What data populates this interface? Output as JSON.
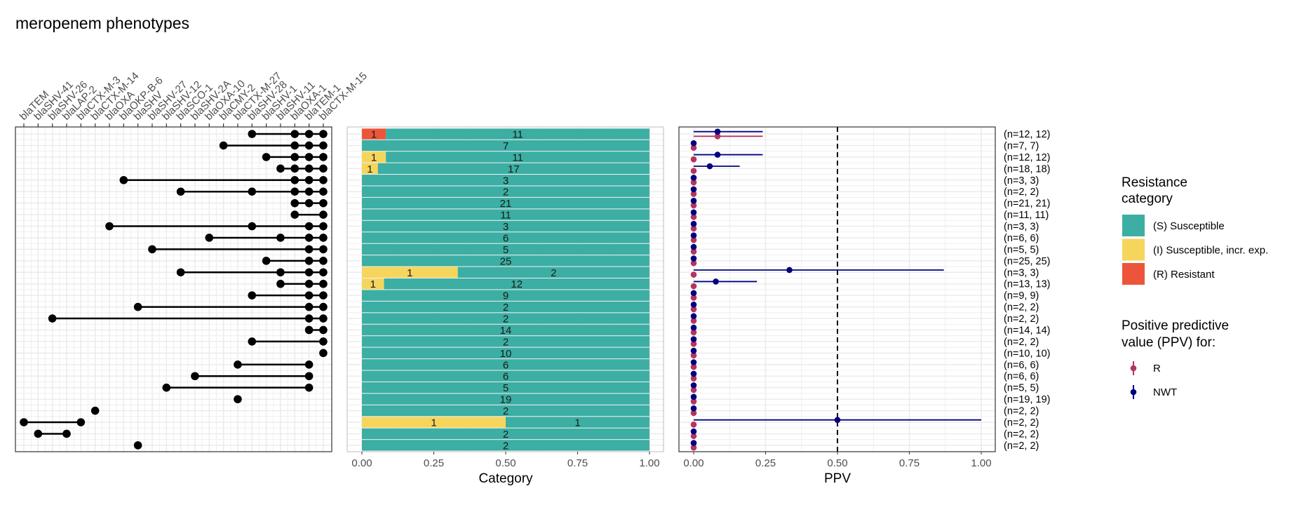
{
  "chart_data": {
    "title": "meropenem phenotypes",
    "genes": [
      "blaTEM",
      "blaSHV-41",
      "blaSHV-26",
      "blaLAP-2",
      "blaCTX-M-3",
      "blaCTX-M-14",
      "blaOXA",
      "blaOKP-B-6",
      "blaSHV",
      "blaSHV-27",
      "blaSHV-12",
      "blaSCO-1",
      "blaSHV-2A",
      "blaOXA-10",
      "blaCMY-2",
      "blaCTX-M-27",
      "blaSHV-28",
      "blaSHV-1",
      "blaSHV-11",
      "blaOXA-1",
      "blaTEM-1",
      "blaCTX-M-15"
    ],
    "combinations": [
      [
        16,
        19,
        20,
        21
      ],
      [
        14,
        19,
        20,
        21
      ],
      [
        17,
        19,
        20,
        21
      ],
      [
        18,
        19,
        20,
        21
      ],
      [
        7,
        19,
        20,
        21
      ],
      [
        11,
        16,
        19,
        20,
        21
      ],
      [
        19,
        20,
        21
      ],
      [
        19,
        21
      ],
      [
        6,
        16,
        20,
        21
      ],
      [
        13,
        18,
        20,
        21
      ],
      [
        9,
        20,
        21
      ],
      [
        17,
        20,
        21
      ],
      [
        11,
        18,
        20,
        21
      ],
      [
        18,
        20,
        21
      ],
      [
        16,
        20,
        21
      ],
      [
        8,
        20,
        21
      ],
      [
        2,
        20,
        21
      ],
      [
        20,
        21
      ],
      [
        16,
        21
      ],
      [
        21
      ],
      [
        15,
        20
      ],
      [
        12,
        20
      ],
      [
        10,
        20
      ],
      [
        15
      ],
      [
        5
      ],
      [
        0,
        4
      ],
      [
        1,
        3
      ],
      [
        8
      ]
    ],
    "category_panel": {
      "type": "bar",
      "xlabel": "Category",
      "xlim": [
        0,
        1
      ],
      "xticks": [
        "0.00",
        "0.25",
        "0.50",
        "0.75",
        "1.00"
      ],
      "rows": [
        {
          "R": 1,
          "I": 0,
          "S": 11
        },
        {
          "R": 0,
          "I": 0,
          "S": 7
        },
        {
          "R": 0,
          "I": 1,
          "S": 11
        },
        {
          "R": 0,
          "I": 1,
          "S": 17
        },
        {
          "R": 0,
          "I": 0,
          "S": 3
        },
        {
          "R": 0,
          "I": 0,
          "S": 2
        },
        {
          "R": 0,
          "I": 0,
          "S": 21
        },
        {
          "R": 0,
          "I": 0,
          "S": 11
        },
        {
          "R": 0,
          "I": 0,
          "S": 3
        },
        {
          "R": 0,
          "I": 0,
          "S": 6
        },
        {
          "R": 0,
          "I": 0,
          "S": 5
        },
        {
          "R": 0,
          "I": 0,
          "S": 25
        },
        {
          "R": 0,
          "I": 1,
          "S": 2
        },
        {
          "R": 0,
          "I": 1,
          "S": 12
        },
        {
          "R": 0,
          "I": 0,
          "S": 9
        },
        {
          "R": 0,
          "I": 0,
          "S": 2
        },
        {
          "R": 0,
          "I": 0,
          "S": 2
        },
        {
          "R": 0,
          "I": 0,
          "S": 14
        },
        {
          "R": 0,
          "I": 0,
          "S": 2
        },
        {
          "R": 0,
          "I": 0,
          "S": 10
        },
        {
          "R": 0,
          "I": 0,
          "S": 6
        },
        {
          "R": 0,
          "I": 0,
          "S": 6
        },
        {
          "R": 0,
          "I": 0,
          "S": 5
        },
        {
          "R": 0,
          "I": 0,
          "S": 19
        },
        {
          "R": 0,
          "I": 0,
          "S": 2
        },
        {
          "R": 0,
          "I": 1,
          "S": 1
        },
        {
          "R": 0,
          "I": 0,
          "S": 2
        },
        {
          "R": 0,
          "I": 0,
          "S": 2
        }
      ]
    },
    "ppv_panel": {
      "type": "scatter",
      "xlabel": "PPV",
      "xlim": [
        0,
        1
      ],
      "xticks": [
        "0.00",
        "0.25",
        "0.50",
        "0.75",
        "1.00"
      ],
      "reference_line": 0.5,
      "rows": [
        {
          "R": [
            0.083,
            0,
            0.24
          ],
          "NWT": [
            0.083,
            0,
            0.24
          ]
        },
        {
          "R": [
            0,
            0,
            0
          ],
          "NWT": [
            0,
            0,
            0
          ]
        },
        {
          "R": [
            0,
            0,
            0
          ],
          "NWT": [
            0.083,
            0,
            0.24
          ]
        },
        {
          "R": [
            0,
            0,
            0
          ],
          "NWT": [
            0.056,
            0,
            0.16
          ]
        },
        {
          "R": [
            0,
            0,
            0
          ],
          "NWT": [
            0,
            0,
            0
          ]
        },
        {
          "R": [
            0,
            0,
            0
          ],
          "NWT": [
            0,
            0,
            0
          ]
        },
        {
          "R": [
            0,
            0,
            0
          ],
          "NWT": [
            0,
            0,
            0
          ]
        },
        {
          "R": [
            0,
            0,
            0
          ],
          "NWT": [
            0,
            0,
            0
          ]
        },
        {
          "R": [
            0,
            0,
            0
          ],
          "NWT": [
            0,
            0,
            0
          ]
        },
        {
          "R": [
            0,
            0,
            0
          ],
          "NWT": [
            0,
            0,
            0
          ]
        },
        {
          "R": [
            0,
            0,
            0
          ],
          "NWT": [
            0,
            0,
            0
          ]
        },
        {
          "R": [
            0,
            0,
            0
          ],
          "NWT": [
            0,
            0,
            0
          ]
        },
        {
          "R": [
            0,
            0,
            0
          ],
          "NWT": [
            0.333,
            0,
            0.87
          ]
        },
        {
          "R": [
            0,
            0,
            0
          ],
          "NWT": [
            0.077,
            0,
            0.22
          ]
        },
        {
          "R": [
            0,
            0,
            0
          ],
          "NWT": [
            0,
            0,
            0
          ]
        },
        {
          "R": [
            0,
            0,
            0
          ],
          "NWT": [
            0,
            0,
            0
          ]
        },
        {
          "R": [
            0,
            0,
            0
          ],
          "NWT": [
            0,
            0,
            0
          ]
        },
        {
          "R": [
            0,
            0,
            0
          ],
          "NWT": [
            0,
            0,
            0
          ]
        },
        {
          "R": [
            0,
            0,
            0
          ],
          "NWT": [
            0,
            0,
            0
          ]
        },
        {
          "R": [
            0,
            0,
            0
          ],
          "NWT": [
            0,
            0,
            0
          ]
        },
        {
          "R": [
            0,
            0,
            0
          ],
          "NWT": [
            0,
            0,
            0
          ]
        },
        {
          "R": [
            0,
            0,
            0
          ],
          "NWT": [
            0,
            0,
            0
          ]
        },
        {
          "R": [
            0,
            0,
            0
          ],
          "NWT": [
            0,
            0,
            0
          ]
        },
        {
          "R": [
            0,
            0,
            0
          ],
          "NWT": [
            0,
            0,
            0
          ]
        },
        {
          "R": [
            0,
            0,
            0
          ],
          "NWT": [
            0,
            0,
            0
          ]
        },
        {
          "R": [
            0,
            0,
            0
          ],
          "NWT": [
            0.5,
            0,
            1
          ]
        },
        {
          "R": [
            0,
            0,
            0
          ],
          "NWT": [
            0,
            0,
            0
          ]
        },
        {
          "R": [
            0,
            0,
            0
          ],
          "NWT": [
            0,
            0,
            0
          ]
        }
      ],
      "n_labels": [
        "(n=12, 12)",
        "(n=7, 7)",
        "(n=12, 12)",
        "(n=18, 18)",
        "(n=3, 3)",
        "(n=2, 2)",
        "(n=21, 21)",
        "(n=11, 11)",
        "(n=3, 3)",
        "(n=6, 6)",
        "(n=5, 5)",
        "(n=25, 25)",
        "(n=3, 3)",
        "(n=13, 13)",
        "(n=9, 9)",
        "(n=2, 2)",
        "(n=2, 2)",
        "(n=14, 14)",
        "(n=2, 2)",
        "(n=10, 10)",
        "(n=6, 6)",
        "(n=6, 6)",
        "(n=5, 5)",
        "(n=19, 19)",
        "(n=2, 2)",
        "(n=2, 2)",
        "(n=2, 2)",
        "(n=2, 2)"
      ]
    },
    "legend_category": {
      "title": [
        "Resistance",
        "category"
      ],
      "items": [
        {
          "key": "S",
          "label": "(S) Susceptible",
          "color": "#3CAEA3"
        },
        {
          "key": "I",
          "label": "(I) Susceptible, incr. exp.",
          "color": "#F6D55C"
        },
        {
          "key": "R",
          "label": "(R) Resistant",
          "color": "#ED553B"
        }
      ]
    },
    "legend_ppv": {
      "title": [
        "Positive predictive",
        "value (PPV) for:"
      ],
      "items": [
        {
          "key": "R",
          "label": "R",
          "color": "#B5345F"
        },
        {
          "key": "NWT",
          "label": "NWT",
          "color": "#000080"
        }
      ]
    }
  }
}
